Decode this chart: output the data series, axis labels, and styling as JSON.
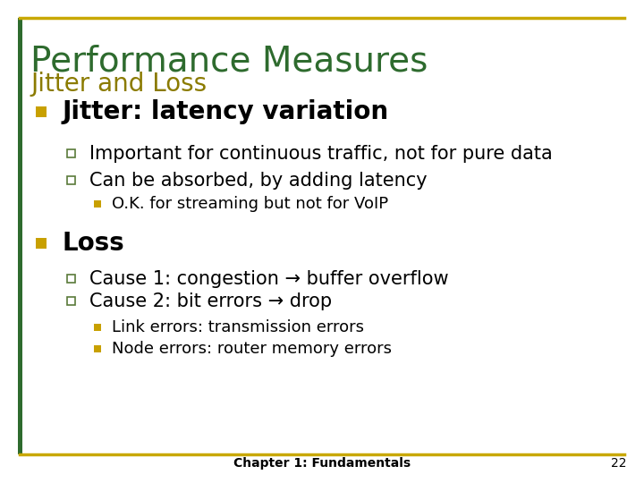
{
  "title_main": "Performance Measures",
  "title_sub": "Jitter and Loss",
  "title_color": "#2E6B2E",
  "subtitle_color": "#8B7B00",
  "bg_color": "#FFFFFF",
  "border_color": "#C8A800",
  "footer_text": "Chapter 1: Fundamentals",
  "footer_page": "22",
  "filled_bullet_color": "#C8A000",
  "open_bullet_border_color": "#5A7A3A",
  "content": [
    {
      "level": 1,
      "bullet": "square_filled",
      "text": "Jitter: latency variation",
      "bold": true,
      "fontsize": 20
    },
    {
      "level": 2,
      "bullet": "square_open",
      "text": "Important for continuous traffic, not for pure data",
      "bold": false,
      "fontsize": 15
    },
    {
      "level": 2,
      "bullet": "square_open",
      "text": "Can be absorbed, by adding latency",
      "bold": false,
      "fontsize": 15
    },
    {
      "level": 3,
      "bullet": "square_filled_small",
      "text": "O.K. for streaming but not for VoIP",
      "bold": false,
      "fontsize": 13
    },
    {
      "level": 1,
      "bullet": "square_filled",
      "text": "Loss",
      "bold": true,
      "fontsize": 20
    },
    {
      "level": 2,
      "bullet": "square_open",
      "text": "Cause 1: congestion → buffer overflow",
      "bold": false,
      "fontsize": 15
    },
    {
      "level": 2,
      "bullet": "square_open",
      "text": "Cause 2: bit errors → drop",
      "bold": false,
      "fontsize": 15
    },
    {
      "level": 3,
      "bullet": "square_filled_small",
      "text": "Link errors: transmission errors",
      "bold": false,
      "fontsize": 13
    },
    {
      "level": 3,
      "bullet": "square_filled_small",
      "text": "Node errors: router memory errors",
      "bold": false,
      "fontsize": 13
    }
  ]
}
